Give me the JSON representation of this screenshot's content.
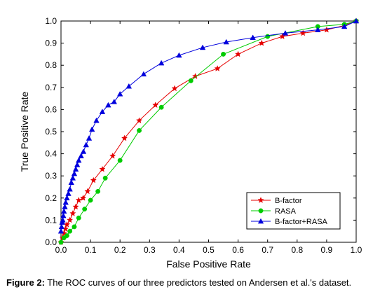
{
  "chart_data": {
    "type": "line",
    "xlabel": "False Positive Rate",
    "ylabel": "True Positive Rate",
    "xlim": [
      0,
      1
    ],
    "ylim": [
      0,
      1
    ],
    "xticks": [
      "0.0",
      "0.1",
      "0.2",
      "0.3",
      "0.4",
      "0.5",
      "0.6",
      "0.7",
      "0.8",
      "0.9",
      "1.0"
    ],
    "yticks": [
      "0.0",
      "0.1",
      "0.2",
      "0.3",
      "0.4",
      "0.5",
      "0.6",
      "0.7",
      "0.8",
      "0.9",
      "1.0"
    ],
    "grid": false,
    "legend_position": "bottom-right",
    "series": [
      {
        "name": "B-factor",
        "color": "#e60000",
        "marker": "star",
        "x": [
          0.0,
          0.005,
          0.01,
          0.015,
          0.02,
          0.03,
          0.04,
          0.05,
          0.06,
          0.075,
          0.09,
          0.11,
          0.14,
          0.175,
          0.215,
          0.265,
          0.32,
          0.385,
          0.455,
          0.53,
          0.6,
          0.68,
          0.75,
          0.82,
          0.9,
          0.96,
          1.0
        ],
        "y": [
          0.0,
          0.02,
          0.04,
          0.06,
          0.08,
          0.1,
          0.13,
          0.16,
          0.19,
          0.2,
          0.23,
          0.28,
          0.33,
          0.39,
          0.47,
          0.55,
          0.62,
          0.695,
          0.75,
          0.785,
          0.85,
          0.9,
          0.93,
          0.945,
          0.96,
          0.98,
          1.0
        ]
      },
      {
        "name": "RASA",
        "color": "#00cc00",
        "marker": "circle",
        "x": [
          0.0,
          0.01,
          0.02,
          0.03,
          0.045,
          0.06,
          0.08,
          0.1,
          0.125,
          0.15,
          0.2,
          0.265,
          0.34,
          0.44,
          0.55,
          0.7,
          0.87,
          0.96,
          1.0
        ],
        "y": [
          0.0,
          0.02,
          0.03,
          0.05,
          0.07,
          0.11,
          0.15,
          0.19,
          0.23,
          0.29,
          0.37,
          0.505,
          0.61,
          0.73,
          0.85,
          0.93,
          0.975,
          0.985,
          1.0
        ]
      },
      {
        "name": "B-factor+RASA",
        "color": "#0000dd",
        "marker": "triangle",
        "x": [
          0.0,
          0.002,
          0.004,
          0.006,
          0.008,
          0.01,
          0.013,
          0.016,
          0.02,
          0.025,
          0.03,
          0.035,
          0.04,
          0.045,
          0.05,
          0.055,
          0.06,
          0.068,
          0.076,
          0.085,
          0.095,
          0.105,
          0.12,
          0.14,
          0.16,
          0.18,
          0.2,
          0.23,
          0.28,
          0.34,
          0.4,
          0.48,
          0.56,
          0.65,
          0.76,
          0.87,
          0.96,
          1.0
        ],
        "y": [
          0.05,
          0.07,
          0.09,
          0.1,
          0.12,
          0.14,
          0.16,
          0.18,
          0.2,
          0.22,
          0.24,
          0.27,
          0.29,
          0.31,
          0.33,
          0.35,
          0.37,
          0.39,
          0.41,
          0.44,
          0.47,
          0.51,
          0.55,
          0.59,
          0.62,
          0.635,
          0.67,
          0.705,
          0.76,
          0.81,
          0.845,
          0.88,
          0.905,
          0.925,
          0.945,
          0.96,
          0.975,
          1.0
        ]
      }
    ]
  },
  "caption": {
    "label": "Figure 2:",
    "text": " The ROC curves of our three predictors tested on Andersen et al.'s dataset."
  }
}
